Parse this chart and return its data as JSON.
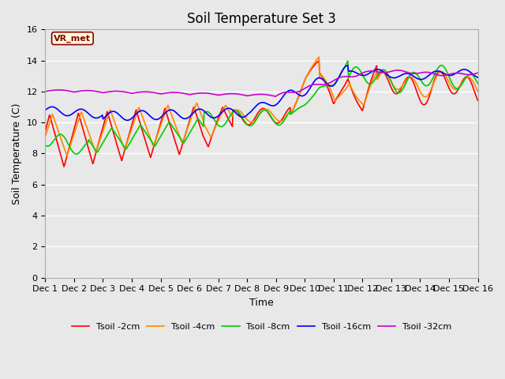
{
  "title": "Soil Temperature Set 3",
  "xlabel": "Time",
  "ylabel": "Soil Temperature (C)",
  "ylim": [
    0,
    16
  ],
  "yticks": [
    0,
    2,
    4,
    6,
    8,
    10,
    12,
    14,
    16
  ],
  "xtick_labels": [
    "Dec 1",
    "Dec 2",
    "Dec 3",
    "Dec 4",
    "Dec 5",
    "Dec 6",
    "Dec 7",
    "Dec 8",
    "Dec 9",
    "Dec 10",
    "Dec 11",
    "Dec 12",
    "Dec 13",
    "Dec 14",
    "Dec 15",
    "Dec 16"
  ],
  "annotation_text": "VR_met",
  "series_colors": [
    "#ff0000",
    "#ff8800",
    "#00cc00",
    "#0000ff",
    "#cc00cc"
  ],
  "series_labels": [
    "Tsoil -2cm",
    "Tsoil -4cm",
    "Tsoil -8cm",
    "Tsoil -16cm",
    "Tsoil -32cm"
  ],
  "plot_bg_color": "#e8e8e8",
  "grid_color": "#ffffff",
  "linewidth": 1.2,
  "title_fontsize": 12,
  "axis_fontsize": 9,
  "tick_fontsize": 8
}
